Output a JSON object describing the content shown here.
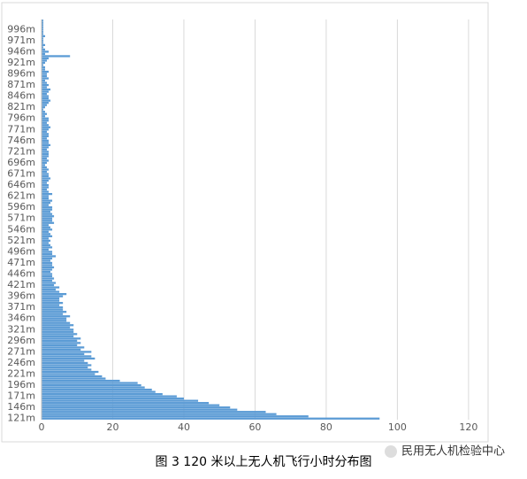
{
  "chart_data": {
    "type": "barh",
    "caption": "图 3   120 米以上无人机飞行小时分布图",
    "watermark": "民用无人机检验中心",
    "color": "#5b9bd5",
    "xlim": [
      0,
      125
    ],
    "xticks": [
      0,
      20,
      40,
      60,
      80,
      100,
      120
    ],
    "grid": true,
    "categories": [
      "121m",
      null,
      null,
      null,
      null,
      "146m",
      null,
      null,
      null,
      null,
      "171m",
      null,
      null,
      null,
      null,
      "196m",
      null,
      null,
      null,
      null,
      "221m",
      null,
      null,
      null,
      null,
      "246m",
      null,
      null,
      null,
      null,
      "271m",
      null,
      null,
      null,
      null,
      "296m",
      null,
      null,
      null,
      null,
      "321m",
      null,
      null,
      null,
      null,
      "346m",
      null,
      null,
      null,
      null,
      "371m",
      null,
      null,
      null,
      null,
      "396m",
      null,
      null,
      null,
      null,
      "421m",
      null,
      null,
      null,
      null,
      "446m",
      null,
      null,
      null,
      null,
      "471m",
      null,
      null,
      null,
      null,
      "496m",
      null,
      null,
      null,
      null,
      "521m",
      null,
      null,
      null,
      null,
      "546m",
      null,
      null,
      null,
      null,
      "571m",
      null,
      null,
      null,
      null,
      "596m",
      null,
      null,
      null,
      null,
      "621m",
      null,
      null,
      null,
      null,
      "646m",
      null,
      null,
      null,
      null,
      "671m",
      null,
      null,
      null,
      null,
      "696m",
      null,
      null,
      null,
      null,
      "721m",
      null,
      null,
      null,
      null,
      "746m",
      null,
      null,
      null,
      null,
      "771m",
      null,
      null,
      null,
      null,
      "796m",
      null,
      null,
      null,
      null,
      "821m",
      null,
      null,
      null,
      null,
      "846m",
      null,
      null,
      null,
      null,
      "871m",
      null,
      null,
      null,
      null,
      "896m",
      null,
      null,
      null,
      null,
      "921m",
      null,
      null,
      null,
      null,
      "946m",
      null,
      null,
      null,
      null,
      "971m",
      null,
      null,
      null,
      null,
      "996m",
      null,
      null,
      null,
      null
    ],
    "values": [
      95,
      75,
      66,
      63,
      55,
      53,
      50,
      47,
      44,
      40,
      38,
      34,
      32,
      31,
      29,
      28,
      27,
      22,
      18,
      17,
      15,
      16,
      14,
      13,
      14,
      13,
      12,
      15,
      14,
      12,
      14,
      11,
      12,
      10,
      11,
      10,
      11,
      9,
      10,
      9,
      9,
      8,
      9,
      8,
      7,
      7,
      8,
      6,
      7,
      6,
      6,
      5,
      6,
      5,
      5,
      6,
      7,
      5,
      4,
      5,
      3.5,
      4,
      3,
      3.5,
      3,
      3,
      2.5,
      3,
      3.5,
      3,
      3,
      2.5,
      3,
      4,
      3,
      3,
      2,
      3,
      2.5,
      2,
      2.5,
      2,
      3,
      2.5,
      2,
      3,
      2.5,
      2,
      3.5,
      3,
      3,
      3.5,
      3,
      2.5,
      3,
      3,
      2,
      2.5,
      3,
      2,
      2,
      3,
      2,
      1.5,
      2,
      2,
      1.5,
      2,
      2.5,
      2,
      2,
      1.5,
      2,
      1.5,
      1,
      1.5,
      2,
      1.5,
      2,
      2,
      2,
      1.5,
      2,
      2.5,
      2,
      2,
      1.5,
      2,
      2,
      1.5,
      2,
      2.5,
      2,
      1.5,
      2,
      2,
      1,
      1.5,
      1,
      0.5,
      1,
      1.5,
      2,
      2.5,
      2,
      2,
      1.5,
      2,
      2.5,
      1.5,
      2,
      1.5,
      1,
      2,
      1.5,
      1.5,
      2,
      1,
      1,
      0.5,
      1,
      1.5,
      2,
      8,
      1,
      2,
      1,
      0.5,
      1,
      0.5,
      0.5,
      0.5,
      1,
      0.5,
      0.5,
      0.5,
      0.5,
      0.5,
      0.5,
      0.5
    ]
  }
}
